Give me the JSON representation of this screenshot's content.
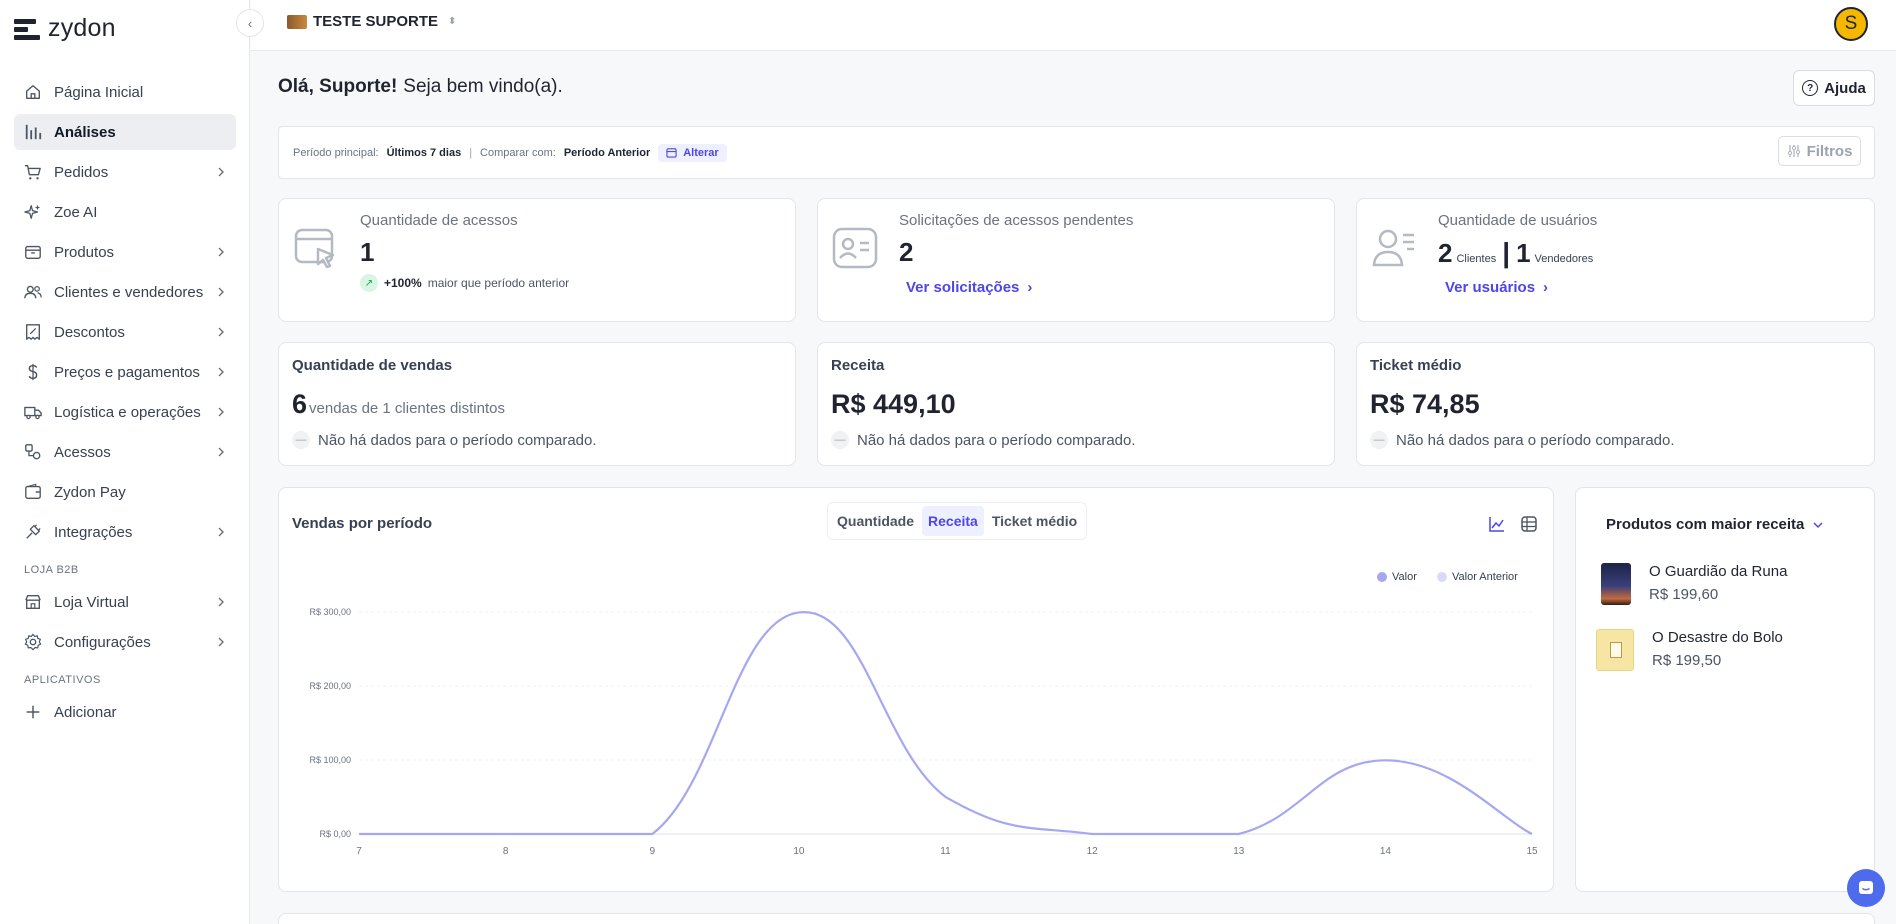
{
  "brand": {
    "name": "zydon"
  },
  "sidebar": {
    "items": [
      {
        "label": "Página Inicial",
        "icon": "home-icon",
        "chevron": false,
        "active": false
      },
      {
        "label": "Análises",
        "icon": "chart-bars-icon",
        "chevron": false,
        "active": true
      },
      {
        "label": "Pedidos",
        "icon": "cart-icon",
        "chevron": true,
        "active": false
      },
      {
        "label": "Zoe AI",
        "icon": "sparkles-icon",
        "chevron": false,
        "active": false
      },
      {
        "label": "Produtos",
        "icon": "box-icon",
        "chevron": true,
        "active": false
      },
      {
        "label": "Clientes e vendedores",
        "icon": "users-icon",
        "chevron": true,
        "active": false
      },
      {
        "label": "Descontos",
        "icon": "discount-icon",
        "chevron": true,
        "active": false
      },
      {
        "label": "Preços e pagamentos",
        "icon": "dollar-icon",
        "chevron": true,
        "active": false
      },
      {
        "label": "Logística e operações",
        "icon": "truck-icon",
        "chevron": true,
        "active": false
      },
      {
        "label": "Acessos",
        "icon": "access-icon",
        "chevron": true,
        "active": false
      },
      {
        "label": "Zydon Pay",
        "icon": "wallet-icon",
        "chevron": false,
        "active": false
      },
      {
        "label": "Integrações",
        "icon": "plug-icon",
        "chevron": true,
        "active": false
      }
    ],
    "section_b2b": "LOJA B2B",
    "b2b_items": [
      {
        "label": "Loja Virtual",
        "icon": "store-icon",
        "chevron": true
      },
      {
        "label": "Configurações",
        "icon": "gear-icon",
        "chevron": true
      }
    ],
    "section_apps": "APLICATIVOS",
    "apps_items": [
      {
        "label": "Adicionar",
        "icon": "plus-icon"
      }
    ]
  },
  "topbar": {
    "store_name": "TESTE SUPORTE",
    "avatar_initial": "S"
  },
  "greeting": {
    "bold": "Olá, Suporte!",
    "rest": "Seja bem vindo(a)."
  },
  "help": {
    "label": "Ajuda"
  },
  "filterbar": {
    "main_period_label": "Período principal:",
    "main_period_value": "Últimos 7 dias",
    "separator": "|",
    "compare_label": "Comparar com:",
    "compare_value": "Período Anterior",
    "change_label": "Alterar",
    "filters_label": "Filtros"
  },
  "stats": {
    "accesses": {
      "title": "Quantidade de acessos",
      "value": "1",
      "trend_pct": "+100%",
      "trend_text": "maior que período anterior"
    },
    "pending": {
      "title": "Solicitações de acessos pendentes",
      "value": "2",
      "link": "Ver solicitações"
    },
    "users": {
      "title": "Quantidade de usuários",
      "clients_value": "2",
      "clients_label": "Clientes",
      "bar": "|",
      "sellers_value": "1",
      "sellers_label": "Vendedores",
      "link": "Ver usuários"
    }
  },
  "kpis": {
    "sales": {
      "title": "Quantidade de vendas",
      "value": "6",
      "sub": "vendas de 1 clientes distintos",
      "note": "Não há dados para o período comparado."
    },
    "revenue": {
      "title": "Receita",
      "value": "R$ 449,10",
      "note": "Não há dados para o período comparado."
    },
    "ticket": {
      "title": "Ticket médio",
      "value": "R$ 74,85",
      "note": "Não há dados para o período comparado."
    }
  },
  "sales_chart": {
    "title": "Vendas por período",
    "tabs": [
      "Quantidade",
      "Receita",
      "Ticket médio"
    ],
    "active_tab": 1,
    "legend": [
      "Valor",
      "Valor Anterior"
    ],
    "colors": {
      "valor": "#a5a8f0",
      "valor_anterior": "#d8dbf5"
    }
  },
  "chart_data": {
    "type": "line",
    "x": [
      "7",
      "8",
      "9",
      "10",
      "11",
      "12",
      "13",
      "14",
      "15"
    ],
    "series": [
      {
        "name": "Valor",
        "values": [
          0,
          0,
          0,
          299.4,
          50.1,
          0,
          0,
          99.6,
          0
        ]
      }
    ],
    "y_ticks": [
      "R$ 0,00",
      "R$ 100,00",
      "R$ 200,00",
      "R$ 300,00"
    ],
    "ylim": [
      0,
      300
    ],
    "grid": true,
    "legend_position": "top-right"
  },
  "top_products": {
    "title": "Produtos com maior receita",
    "items": [
      {
        "name": "O Guardião da Runa",
        "price": "R$ 199,60"
      },
      {
        "name": "O Desastre do Bolo",
        "price": "R$ 199,50"
      }
    ]
  }
}
